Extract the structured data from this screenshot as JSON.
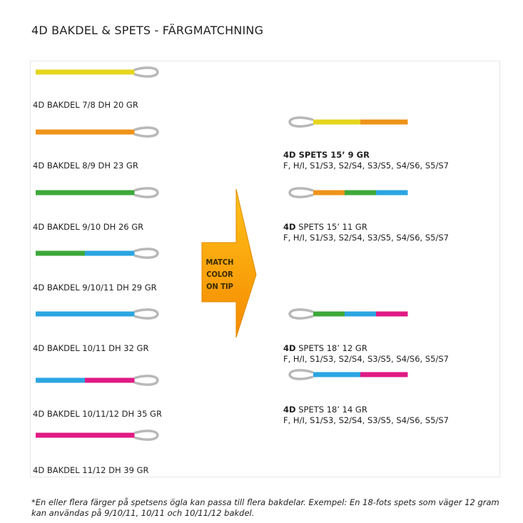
{
  "title": "4D BAKDEL & SPETS -  FÄRGMATCHNING",
  "colors": {
    "yellow": "#e6d51e",
    "orange": "#ef9319",
    "green": "#3da93a",
    "blue": "#2ba5e2",
    "pink": "#e01a84",
    "loop": "#b8b8b8"
  },
  "bakdelar": [
    {
      "label": "4D BAKDEL 7/8 DH 20 GR",
      "segments": [
        "yellow"
      ]
    },
    {
      "label": "4D BAKDEL 8/9 DH 23 GR",
      "segments": [
        "orange"
      ]
    },
    {
      "label": "4D BAKDEL 9/10 DH 26 GR",
      "segments": [
        "green"
      ]
    },
    {
      "label": "4D BAKDEL 9/10/11 DH 29 GR",
      "segments": [
        "green",
        "blue"
      ]
    },
    {
      "label": "4D BAKDEL 10/11 DH 32 GR",
      "segments": [
        "blue"
      ]
    },
    {
      "label": "4D BAKDEL 10/11/12 DH 35 GR",
      "segments": [
        "blue",
        "pink"
      ]
    },
    {
      "label": "4D BAKDEL 11/12 DH 39 GR",
      "segments": [
        "pink"
      ]
    }
  ],
  "arrow": {
    "text": [
      "MATCH",
      "COLOR",
      "ON TIP"
    ]
  },
  "spetsar": [
    {
      "brand": "4D",
      "name": " SPETS 15’ 9 GR",
      "all_bold": true,
      "sizes": "F, H/I, S1/S3, S2/S4, S3/S5, S4/S6, S5/S7",
      "segments": [
        "yellow",
        "orange"
      ]
    },
    {
      "brand": "4D",
      "name": " SPETS 15’ 11 GR",
      "all_bold": false,
      "sizes": "F, H/I, S1/S3, S2/S4, S3/S5, S4/S6, S5/S7",
      "segments": [
        "orange",
        "green",
        "blue"
      ]
    },
    {
      "brand": "4D",
      "name": " SPETS 18’ 12 GR",
      "all_bold": false,
      "sizes": "F, H/I, S1/S3, S2/S4, S3/S5, S4/S6, S5/S7",
      "segments": [
        "green",
        "blue",
        "pink"
      ]
    },
    {
      "brand": "4D",
      "name": " SPETS 18’ 14 GR",
      "all_bold": false,
      "sizes": "F, H/I, S1/S3, S2/S4, S3/S5, S4/S6, S5/S7",
      "segments": [
        "blue",
        "pink"
      ]
    }
  ],
  "footnote": "*En eller flera färger på spetsens ögla kan passa till flera bakdelar. Exempel: En 18-fots spets som väger 12 gram kan användas på 9/10/11, 10/11 och 10/11/12 bakdel."
}
